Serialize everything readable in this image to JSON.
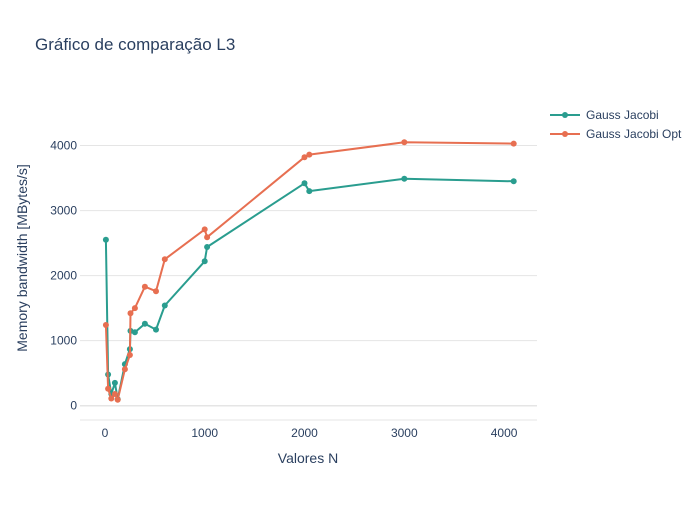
{
  "chart_data": {
    "type": "line",
    "title": "Gráfico de comparação L3",
    "xlabel": "Valores N",
    "ylabel": "Memory bandwidth [MBytes/s]",
    "xlim": [
      -250,
      4330
    ],
    "ylim": [
      -220,
      4700
    ],
    "xticks": [
      0,
      1000,
      2000,
      3000,
      4000
    ],
    "yticks": [
      0,
      1000,
      2000,
      3000,
      4000
    ],
    "grid": true,
    "legend_position": "top-right",
    "series": [
      {
        "name": "Gauss Jacobi",
        "color": "#2a9d8f",
        "x": [
          10,
          32,
          64,
          100,
          128,
          200,
          250,
          256,
          300,
          400,
          512,
          600,
          1000,
          1024,
          2000,
          2048,
          3000,
          4096
        ],
        "y": [
          2550,
          480,
          180,
          350,
          100,
          640,
          870,
          1150,
          1130,
          1260,
          1170,
          1540,
          2220,
          2440,
          3420,
          3300,
          3490,
          3450
        ]
      },
      {
        "name": "Gauss Jacobi Opt",
        "color": "#e76f51",
        "x": [
          10,
          32,
          64,
          100,
          128,
          200,
          250,
          256,
          300,
          400,
          512,
          600,
          1000,
          1024,
          2000,
          2048,
          3000,
          4096
        ],
        "y": [
          1240,
          260,
          110,
          180,
          90,
          560,
          780,
          1420,
          1500,
          1830,
          1760,
          2250,
          2710,
          2590,
          3820,
          3860,
          4050,
          4030
        ]
      }
    ]
  }
}
